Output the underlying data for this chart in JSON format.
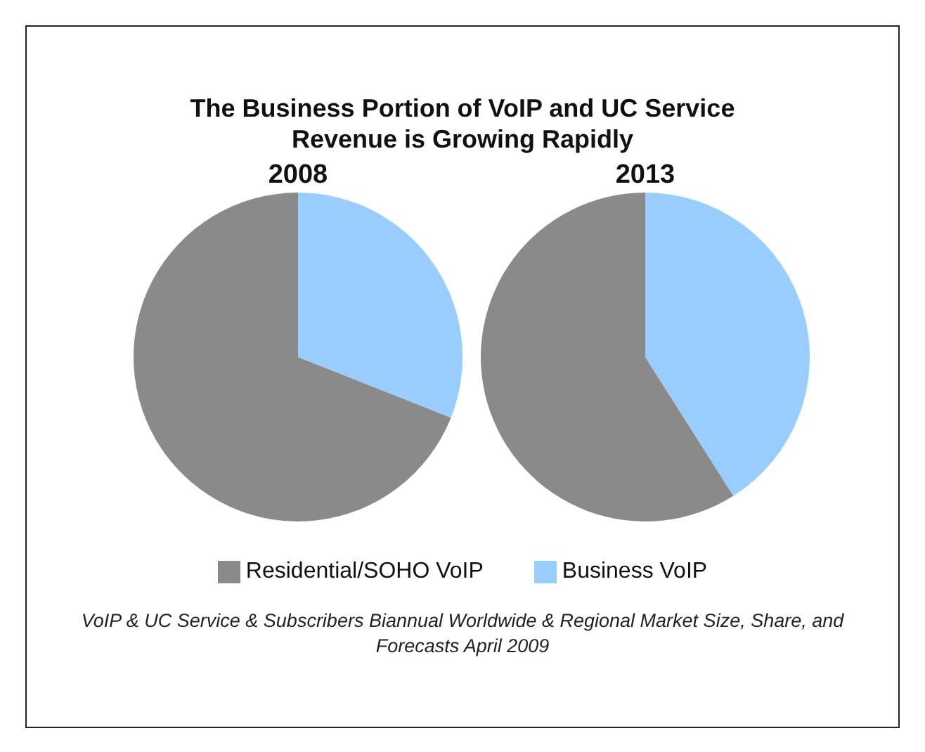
{
  "chart_data": {
    "type": "pie",
    "title": "The Business Portion of VoIP and UC Service Revenue is Growing Rapidly",
    "categories": [
      "Residential/SOHO VoIP",
      "Business VoIP"
    ],
    "colors": [
      "#8a8a8a",
      "#99ccff"
    ],
    "series": [
      {
        "name": "2008",
        "values": [
          69,
          31
        ]
      },
      {
        "name": "2013",
        "values": [
          59,
          41
        ]
      }
    ],
    "legend": "bottom",
    "annotations": [
      "VoIP & UC Service & Subscribers Biannual Worldwide & Regional Market Size, Share, and Forecasts April 2009"
    ]
  }
}
